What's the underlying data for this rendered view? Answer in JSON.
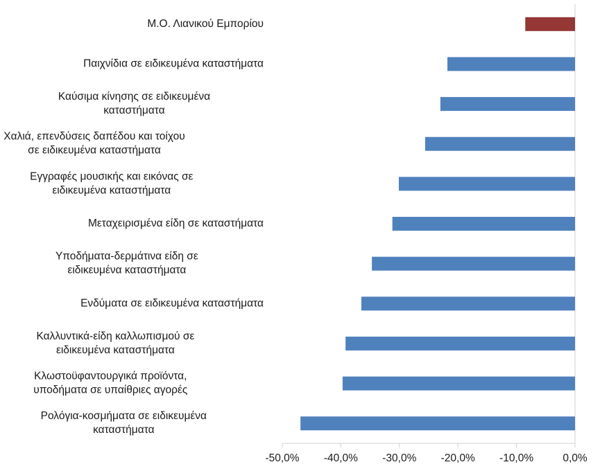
{
  "chart_data": {
    "type": "bar",
    "orientation": "horizontal",
    "categories": [
      "Μ.Ο. Λιανικού  Εμπορίου",
      "Παιχνίδια σε ειδικευμένα καταστήματα",
      "Καύσιμα κίνησης σε ειδικευμένα\nκαταστήματα",
      "Χαλιά, επενδύσεις δαπέδου και τοίχου\nσε ειδικευμένα καταστήματα",
      "Εγγραφές μουσικής και εικόνας σε\nειδικευμένα καταστήματα",
      "Μεταχειρισμένα είδη σε καταστήματα",
      "Υποδήματα-δερμάτινα είδη σε\nειδικευμένα καταστήματα",
      "Ενδύματα σε ειδικευμένα καταστήματα",
      "Καλλυντικά-είδη καλλωπισμού σε\nειδικευμένα καταστήματα",
      "Κλωστοϋφαντουργικά προϊόντα,\nυποδήματα σε υπαίθριες αγορές",
      "Ρολόγια-κοσμήματα σε ειδικευμένα\nκαταστήματα"
    ],
    "values": [
      -8.5,
      -21.8,
      -23.0,
      -25.6,
      -30.1,
      -31.2,
      -34.7,
      -36.5,
      -39.2,
      -39.7,
      -46.9
    ],
    "colors": [
      "#953735",
      "#4f81bd",
      "#4f81bd",
      "#4f81bd",
      "#4f81bd",
      "#4f81bd",
      "#4f81bd",
      "#4f81bd",
      "#4f81bd",
      "#4f81bd",
      "#4f81bd"
    ],
    "xlim": [
      -50,
      0
    ],
    "xticks": [
      {
        "value": -50,
        "label": "-50,0%"
      },
      {
        "value": -40,
        "label": "-40,0%"
      },
      {
        "value": -30,
        "label": "-30,0%"
      },
      {
        "value": -20,
        "label": "-20,0%"
      },
      {
        "value": -10,
        "label": "-10,0%"
      },
      {
        "value": 0,
        "label": "0,0%"
      }
    ],
    "grid": false
  }
}
